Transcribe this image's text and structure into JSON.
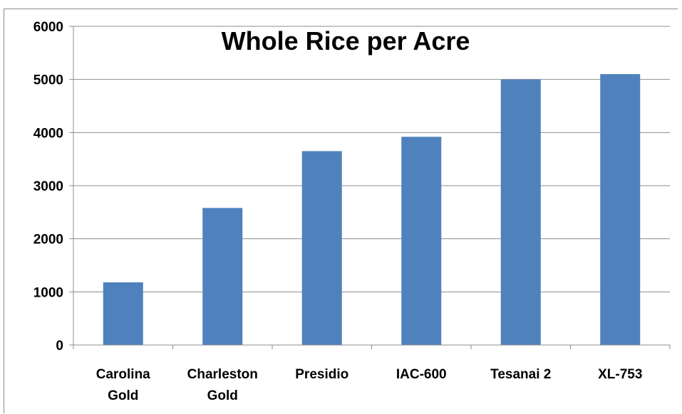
{
  "chart_data": {
    "type": "bar",
    "title": "Whole Rice per Acre",
    "xlabel": "",
    "ylabel": "",
    "categories": [
      [
        "Carolina",
        "Gold"
      ],
      [
        "Charleston",
        "Gold"
      ],
      [
        "Presidio"
      ],
      [
        "IAC-600"
      ],
      [
        "Tesanai 2"
      ],
      [
        "XL-753"
      ]
    ],
    "values": [
      1180,
      2580,
      3650,
      3920,
      5000,
      5100
    ],
    "ylim": [
      0,
      6000
    ],
    "yticks": [
      "0",
      "1000",
      "2000",
      "3000",
      "4000",
      "5000",
      "6000"
    ],
    "grid": true,
    "legend": "none",
    "bar_color": "#4f81bd",
    "grid_color": "#8c8c8c",
    "axis_color": "#8c8c8c"
  }
}
